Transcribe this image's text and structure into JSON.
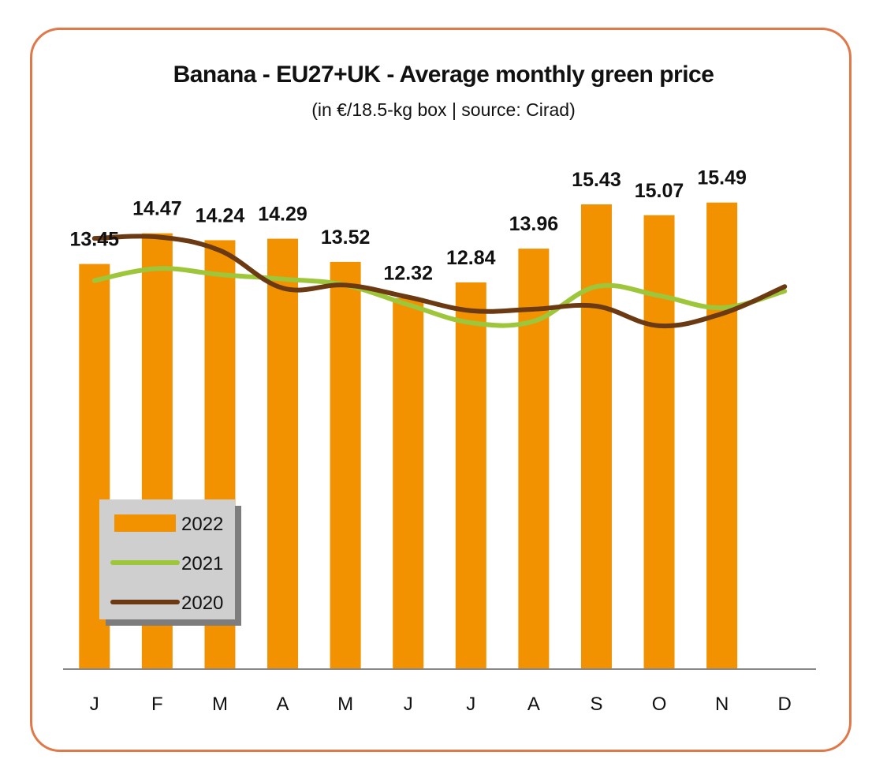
{
  "chart_data": {
    "type": "bar",
    "title": "Banana - EU27+UK - Average monthly green price",
    "subtitle": "(in €/18.5-kg box | source: Cirad)",
    "categories": [
      "J",
      "F",
      "M",
      "A",
      "M",
      "J",
      "J",
      "A",
      "S",
      "O",
      "N",
      "D"
    ],
    "ylim": [
      0,
      17.5
    ],
    "grid": false,
    "legend_position": "bottom-left",
    "series": [
      {
        "name": "2022",
        "kind": "bar",
        "color": "#f39200",
        "values": [
          13.45,
          14.47,
          14.24,
          14.29,
          13.52,
          12.32,
          12.84,
          13.96,
          15.43,
          15.07,
          15.49,
          null
        ],
        "labels": [
          "13.45",
          "14.47",
          "14.24",
          "14.29",
          "13.52",
          "12.32",
          "12.84",
          "13.96",
          "15.43",
          "15.07",
          "15.49",
          ""
        ]
      },
      {
        "name": "2021",
        "kind": "line",
        "color": "#9dc63a",
        "values": [
          12.9,
          13.3,
          13.1,
          12.95,
          12.75,
          12.1,
          11.5,
          11.55,
          12.7,
          12.4,
          12.0,
          12.55
        ]
      },
      {
        "name": "2020",
        "kind": "line",
        "color": "#6b3a12",
        "values": [
          14.3,
          14.35,
          13.9,
          12.65,
          12.75,
          12.35,
          11.9,
          11.95,
          12.05,
          11.4,
          11.8,
          12.7
        ]
      }
    ]
  }
}
